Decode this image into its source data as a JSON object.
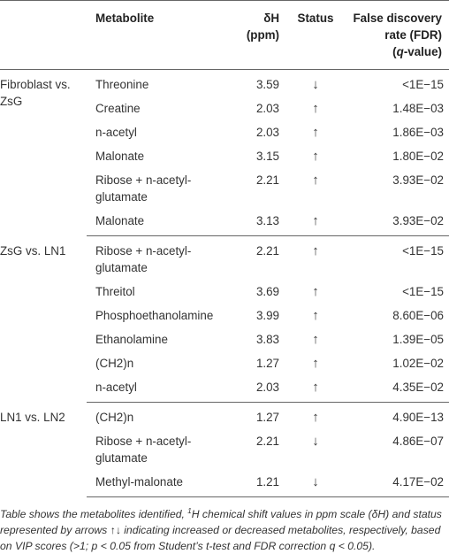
{
  "headers": {
    "group": "",
    "metabolite": "Metabolite",
    "dh": "δH\n(ppm)",
    "status": "Status",
    "fdr_line1": "False discovery",
    "fdr_line2": "rate (FDR)",
    "fdr_line3_q": "q",
    "fdr_line3_rest": "-value)"
  },
  "groups": [
    {
      "label": "Fibroblast vs.\nZsG",
      "rows": [
        {
          "metabolite": "Threonine",
          "dh": "3.59",
          "status": "↓",
          "fdr": "<1E−15"
        },
        {
          "metabolite": "Creatine",
          "dh": "2.03",
          "status": "↑",
          "fdr": "1.48E−03"
        },
        {
          "metabolite": "n-acetyl",
          "dh": "2.03",
          "status": "↑",
          "fdr": "1.86E−03"
        },
        {
          "metabolite": "Malonate",
          "dh": "3.15",
          "status": "↑",
          "fdr": "1.80E−02"
        },
        {
          "metabolite": "Ribose + n-acetyl-\nglutamate",
          "dh": "2.21",
          "status": "↑",
          "fdr": "3.93E−02"
        },
        {
          "metabolite": "Malonate",
          "dh": "3.13",
          "status": "↑",
          "fdr": "3.93E−02"
        }
      ]
    },
    {
      "label": "ZsG vs. LN1",
      "rows": [
        {
          "metabolite": "Ribose + n-acetyl-\nglutamate",
          "dh": "2.21",
          "status": "↑",
          "fdr": "<1E−15"
        },
        {
          "metabolite": "Threitol",
          "dh": "3.69",
          "status": "↑",
          "fdr": "<1E−15"
        },
        {
          "metabolite": "Phosphoethanolamine",
          "dh": "3.99",
          "status": "↑",
          "fdr": "8.60E−06"
        },
        {
          "metabolite": "Ethanolamine",
          "dh": "3.83",
          "status": "↑",
          "fdr": "1.39E−05"
        },
        {
          "metabolite": "(CH2)n",
          "dh": "1.27",
          "status": "↑",
          "fdr": "1.02E−02"
        },
        {
          "metabolite": "n-acetyl",
          "dh": "2.03",
          "status": "↑",
          "fdr": "4.35E−02"
        }
      ]
    },
    {
      "label": "LN1 vs. LN2",
      "rows": [
        {
          "metabolite": "(CH2)n",
          "dh": "1.27",
          "status": "↑",
          "fdr": "4.90E−13"
        },
        {
          "metabolite": "Ribose + n-acetyl-\nglutamate",
          "dh": "2.21",
          "status": "↓",
          "fdr": "4.86E−07"
        },
        {
          "metabolite": "Methyl-malonate",
          "dh": "1.21",
          "status": "↓",
          "fdr": "4.17E−02"
        }
      ]
    }
  ],
  "caption": {
    "part1": "Table shows the metabolites identified, ",
    "sup": "1",
    "part2": "H chemical shift values in ppm scale (δH) and status represented by arrows ↑↓ indicating increased or decreased metabolites, respectively, based on VIP scores (>1; p < 0.05 from Student’s t-test and FDR correction q < 0.05)."
  }
}
